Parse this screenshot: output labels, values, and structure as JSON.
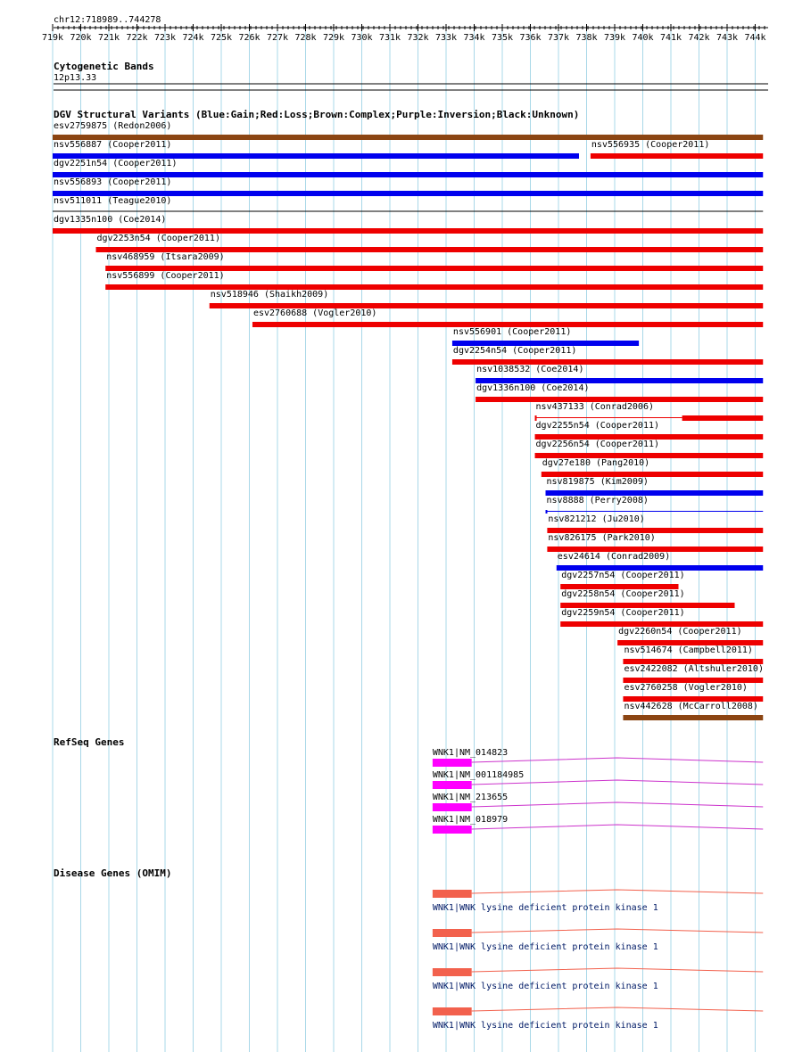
{
  "view": {
    "region": "chr12:718989..744278",
    "ticks": [
      "719k",
      "720k",
      "721k",
      "722k",
      "723k",
      "724k",
      "725k",
      "726k",
      "727k",
      "728k",
      "729k",
      "730k",
      "731k",
      "732k",
      "733k",
      "734k",
      "735k",
      "736k",
      "737k",
      "738k",
      "739k",
      "740k",
      "741k",
      "742k",
      "743k",
      "744k"
    ]
  },
  "colors": {
    "gain": "#0000ee",
    "loss": "#ee0000",
    "complex": "#8b4513",
    "gene": "#ff00ff",
    "intron": "#cc33cc",
    "disease_exon": "#f2614d",
    "disease_intron": "#f2614d",
    "grid": "#a9d8e8"
  },
  "tracks": {
    "cyto": {
      "title": "Cytogenetic Bands",
      "band": "12p13.33"
    },
    "dgv": {
      "title": "DGV Structural Variants (Blue:Gain;Red:Loss;Brown:Complex;Purple:Inversion;Black:Unknown)",
      "features": [
        {
          "label": "esv2759875 (Redon2006)",
          "start": 718989,
          "end": 744278,
          "type": "complex",
          "row": 0
        },
        {
          "label": "nsv556887 (Cooper2011)",
          "start": 718989,
          "end": 737730,
          "type": "gain",
          "row": 1
        },
        {
          "label": "nsv556935 (Cooper2011)",
          "start": 738140,
          "end": 744278,
          "type": "loss",
          "row": 1
        },
        {
          "label": "dgv2251n54 (Cooper2011)",
          "start": 718989,
          "end": 744278,
          "type": "gain",
          "row": 2
        },
        {
          "label": "nsv556893 (Cooper2011)",
          "start": 718989,
          "end": 744278,
          "type": "gain",
          "row": 3
        },
        {
          "label": "nsv511011 (Teague2010)",
          "start": 718989,
          "end": 744278,
          "type": "unknown",
          "row": 4
        },
        {
          "label": "dgv1335n100 (Coe2014)",
          "start": 718989,
          "end": 744278,
          "type": "loss",
          "row": 5
        },
        {
          "label": "dgv2253n54 (Cooper2011)",
          "start": 720540,
          "end": 744278,
          "type": "loss",
          "row": 6
        },
        {
          "label": "nsv468959 (Itsara2009)",
          "start": 720880,
          "end": 744278,
          "type": "loss",
          "row": 7
        },
        {
          "label": "nsv556899 (Cooper2011)",
          "start": 720880,
          "end": 744278,
          "type": "loss",
          "row": 8
        },
        {
          "label": "nsv518946 (Shaikh2009)",
          "start": 724580,
          "end": 744278,
          "type": "loss",
          "row": 9
        },
        {
          "label": "esv2760688 (Vogler2010)",
          "start": 726110,
          "end": 744278,
          "type": "loss",
          "row": 10
        },
        {
          "label": "nsv556901 (Cooper2011)",
          "start": 733220,
          "end": 739860,
          "type": "gain",
          "row": 11
        },
        {
          "label": "dgv2254n54 (Cooper2011)",
          "start": 733220,
          "end": 744278,
          "type": "loss",
          "row": 12
        },
        {
          "label": "nsv1038532 (Coe2014)",
          "start": 734050,
          "end": 744278,
          "type": "gain",
          "row": 13
        },
        {
          "label": "dgv1336n100 (Coe2014)",
          "start": 734050,
          "end": 744278,
          "type": "loss",
          "row": 14
        },
        {
          "label": "nsv437133 (Conrad2006)",
          "start": 736160,
          "end": 744278,
          "type": "loss",
          "row": 15,
          "split": [
            736220,
            741400
          ]
        },
        {
          "label": "dgv2255n54 (Cooper2011)",
          "start": 736160,
          "end": 744278,
          "type": "loss",
          "row": 16
        },
        {
          "label": "dgv2256n54 (Cooper2011)",
          "start": 736160,
          "end": 744278,
          "type": "loss",
          "row": 17
        },
        {
          "label": "dgv27e180 (Pang2010)",
          "start": 736390,
          "end": 744278,
          "type": "loss",
          "row": 18
        },
        {
          "label": "nsv819875 (Kim2009)",
          "start": 736540,
          "end": 744278,
          "type": "gain",
          "row": 19
        },
        {
          "label": "nsv8888 (Perry2008)",
          "start": 736540,
          "end": 744278,
          "type": "gain",
          "row": 20,
          "thin": true
        },
        {
          "label": "nsv821212 (Ju2010)",
          "start": 736600,
          "end": 744278,
          "type": "loss",
          "row": 21
        },
        {
          "label": "nsv826175 (Park2010)",
          "start": 736600,
          "end": 744278,
          "type": "loss",
          "row": 22
        },
        {
          "label": "esv24614 (Conrad2009)",
          "start": 736930,
          "end": 744278,
          "type": "gain",
          "row": 23
        },
        {
          "label": "dgv2257n54 (Cooper2011)",
          "start": 737070,
          "end": 741270,
          "type": "loss",
          "row": 24
        },
        {
          "label": "dgv2258n54 (Cooper2011)",
          "start": 737070,
          "end": 743270,
          "type": "loss",
          "row": 25
        },
        {
          "label": "dgv2259n54 (Cooper2011)",
          "start": 737070,
          "end": 744278,
          "type": "loss",
          "row": 26
        },
        {
          "label": "dgv2260n54 (Cooper2011)",
          "start": 739100,
          "end": 744278,
          "type": "loss",
          "row": 27
        },
        {
          "label": "nsv514674 (Campbell2011)",
          "start": 739300,
          "end": 744278,
          "type": "loss",
          "row": 28
        },
        {
          "label": "esv2422082 (Altshuler2010)",
          "start": 739300,
          "end": 744278,
          "type": "loss",
          "row": 29
        },
        {
          "label": "esv2760258 (Vogler2010)",
          "start": 739300,
          "end": 744278,
          "type": "loss",
          "row": 30
        },
        {
          "label": "nsv442628 (McCarroll2008)",
          "start": 739300,
          "end": 744278,
          "type": "complex",
          "row": 31
        }
      ]
    },
    "refseq": {
      "title": "RefSeq Genes",
      "features": [
        {
          "label": "WNK1|NM_014823",
          "start": 732520,
          "exon_end": 733910,
          "end": 744278
        },
        {
          "label": "WNK1|NM_001184985",
          "start": 732520,
          "exon_end": 733910,
          "end": 744278
        },
        {
          "label": "WNK1|NM_213655",
          "start": 732520,
          "exon_end": 733910,
          "end": 744278
        },
        {
          "label": "WNK1|NM_018979",
          "start": 732520,
          "exon_end": 733910,
          "end": 744278
        }
      ]
    },
    "omim": {
      "title": "Disease Genes (OMIM)",
      "features": [
        {
          "label": "WNK1|WNK lysine deficient protein kinase 1",
          "start": 732520,
          "exon_end": 733910,
          "end": 744278
        },
        {
          "label": "WNK1|WNK lysine deficient protein kinase 1",
          "start": 732520,
          "exon_end": 733910,
          "end": 744278
        },
        {
          "label": "WNK1|WNK lysine deficient protein kinase 1",
          "start": 732520,
          "exon_end": 733910,
          "end": 744278
        },
        {
          "label": "WNK1|WNK lysine deficient protein kinase 1",
          "start": 732520,
          "exon_end": 733910,
          "end": 744278
        }
      ]
    }
  }
}
